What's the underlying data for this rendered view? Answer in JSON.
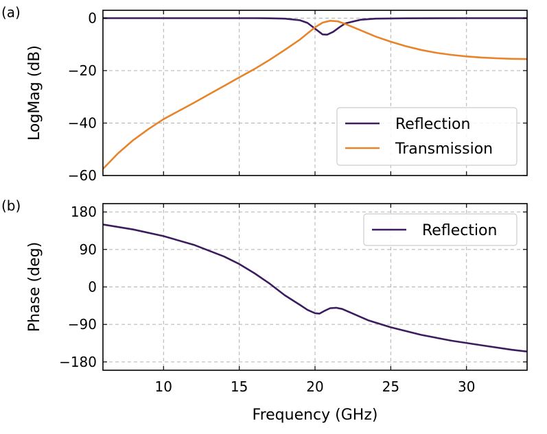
{
  "chart_data": [
    {
      "type": "line",
      "panel_label": "(a)",
      "xlabel": "",
      "ylabel": "LogMag (dB)",
      "xlim": [
        6,
        34
      ],
      "ylim": [
        -60,
        3
      ],
      "xticks": [
        10,
        15,
        20,
        25,
        30
      ],
      "yticks": [
        0,
        -20,
        -40,
        -60
      ],
      "ytick_labels": [
        "0",
        "−20",
        "−40",
        "−60"
      ],
      "show_x_tick_labels": false,
      "grid": true,
      "legend_position": "lower-right",
      "series": [
        {
          "name": "Reflection",
          "color": "#3b1c5e",
          "x": [
            6,
            10,
            14,
            16,
            17,
            18,
            19,
            19.5,
            20,
            20.5,
            20.8,
            21.2,
            21.6,
            22,
            23,
            24,
            26,
            30,
            34
          ],
          "y": [
            0,
            0,
            0,
            0,
            -0.05,
            -0.2,
            -0.8,
            -1.8,
            -4.0,
            -6.2,
            -6.3,
            -5.2,
            -3.5,
            -2.0,
            -0.6,
            -0.2,
            -0.05,
            0,
            0
          ]
        },
        {
          "name": "Transmission",
          "color": "#e8832a",
          "x": [
            6,
            7,
            8,
            9,
            10,
            12,
            14,
            15,
            16,
            17,
            18,
            19,
            20,
            20.5,
            21,
            21.5,
            22,
            23,
            24,
            25,
            26,
            27,
            28,
            29,
            30,
            31,
            32,
            33,
            34
          ],
          "y": [
            -57.5,
            -51.5,
            -46.5,
            -42.3,
            -38.5,
            -32.3,
            -25.8,
            -22.6,
            -19.4,
            -15.9,
            -12.1,
            -8.2,
            -3.5,
            -1.7,
            -1.0,
            -1.2,
            -2.2,
            -4.6,
            -7.0,
            -9.0,
            -10.7,
            -12.1,
            -13.2,
            -14.0,
            -14.6,
            -15.0,
            -15.3,
            -15.5,
            -15.6
          ]
        }
      ]
    },
    {
      "type": "line",
      "panel_label": "(b)",
      "xlabel": "Frequency (GHz)",
      "ylabel": "Phase (deg)",
      "xlim": [
        6,
        34
      ],
      "ylim": [
        -200,
        200
      ],
      "xticks": [
        10,
        15,
        20,
        25,
        30
      ],
      "xtick_labels": [
        "10",
        "15",
        "20",
        "25",
        "30"
      ],
      "yticks": [
        180,
        90,
        0,
        -90,
        -180
      ],
      "ytick_labels": [
        "180",
        "90",
        "0",
        "−90",
        "−180"
      ],
      "show_x_tick_labels": true,
      "grid": true,
      "legend_position": "upper-right",
      "series": [
        {
          "name": "Reflection",
          "color": "#3b1c5e",
          "x": [
            6,
            8,
            10,
            12,
            14,
            15,
            16,
            17,
            18,
            19,
            19.5,
            20,
            20.3,
            20.6,
            21,
            21.4,
            21.8,
            22.5,
            23.5,
            25,
            27,
            29,
            31,
            33,
            34
          ],
          "y": [
            150,
            138,
            122,
            101,
            73,
            55,
            33,
            8,
            -20,
            -43,
            -55,
            -63,
            -64,
            -58,
            -51,
            -50,
            -53,
            -64,
            -80,
            -97,
            -115,
            -129,
            -140,
            -151,
            -155
          ]
        }
      ]
    }
  ]
}
